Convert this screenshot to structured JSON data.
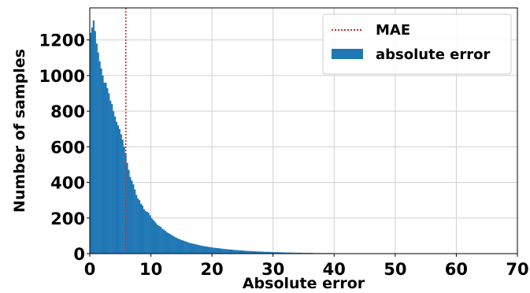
{
  "chart_data": {
    "type": "bar",
    "title": "",
    "xlabel": "Absolute error",
    "ylabel": "Number of samples",
    "xlim": [
      0,
      70
    ],
    "ylim": [
      0,
      1380
    ],
    "xticks": [
      0,
      10,
      20,
      30,
      40,
      50,
      60,
      70
    ],
    "yticks": [
      0,
      200,
      400,
      600,
      800,
      1000,
      1200
    ],
    "grid": true,
    "legend_position": "top-right",
    "legend": [
      "MAE",
      "absolute error"
    ],
    "bin_width": 0.25,
    "series": [
      {
        "name": "absolute error",
        "kind": "histogram",
        "color": "#1f77b4",
        "values": [
          1240,
          1270,
          1310,
          1250,
          1180,
          1130,
          1080,
          1040,
          1000,
          960,
          960,
          930,
          900,
          860,
          840,
          800,
          770,
          740,
          720,
          700,
          670,
          640,
          600,
          560,
          510,
          470,
          430,
          410,
          390,
          360,
          330,
          310,
          300,
          280,
          270,
          250,
          240,
          235,
          230,
          215,
          200,
          190,
          180,
          170,
          160,
          155,
          150,
          140,
          135,
          128,
          120,
          115,
          110,
          105,
          100,
          95,
          90,
          86,
          82,
          78,
          75,
          72,
          69,
          66,
          63,
          60,
          58,
          56,
          54,
          52,
          50,
          48,
          46,
          44,
          42,
          41,
          40,
          38,
          37,
          35,
          34,
          33,
          32,
          31,
          30,
          29,
          28,
          27,
          26,
          25,
          24,
          23,
          23,
          22,
          21,
          20,
          20,
          19,
          18,
          18,
          17,
          16,
          16,
          15,
          15,
          14,
          14,
          13,
          13,
          12,
          12,
          12,
          11,
          11,
          10,
          10,
          10,
          9,
          9,
          9,
          8,
          8,
          8,
          8,
          7,
          7,
          7,
          7,
          6,
          6,
          6,
          6,
          6,
          5,
          5,
          5,
          5,
          5,
          5,
          4,
          4,
          4,
          4,
          4,
          4,
          4,
          3,
          3,
          3,
          3,
          3,
          3,
          3,
          3,
          3,
          3,
          3,
          3,
          3,
          2,
          2,
          2,
          2,
          2,
          2,
          2,
          2,
          2,
          2,
          2,
          2,
          2,
          2,
          2,
          2,
          2,
          2,
          2,
          2,
          2,
          2,
          2,
          2,
          2,
          2,
          2,
          2,
          2,
          2,
          2,
          2,
          2,
          2,
          2,
          2,
          2,
          2,
          2,
          2,
          2,
          2,
          2,
          2,
          2,
          2,
          2,
          2,
          2,
          2,
          2,
          2,
          2,
          2,
          2,
          2,
          2,
          2,
          2,
          2,
          2,
          2,
          2,
          2,
          2,
          2,
          2,
          2,
          2,
          2,
          2,
          2,
          2,
          2,
          2,
          2,
          2,
          2,
          2,
          2,
          2,
          2,
          2,
          2,
          2,
          2,
          2,
          2,
          2,
          2,
          2,
          2,
          2,
          2,
          2,
          2,
          2,
          2,
          2,
          2,
          2,
          2,
          2,
          2,
          2,
          2,
          2,
          2,
          2,
          2,
          2,
          2,
          2,
          2
        ]
      },
      {
        "name": "MAE",
        "kind": "vline",
        "x": 5.9,
        "color": "#d62728",
        "style": "dotted"
      }
    ]
  }
}
